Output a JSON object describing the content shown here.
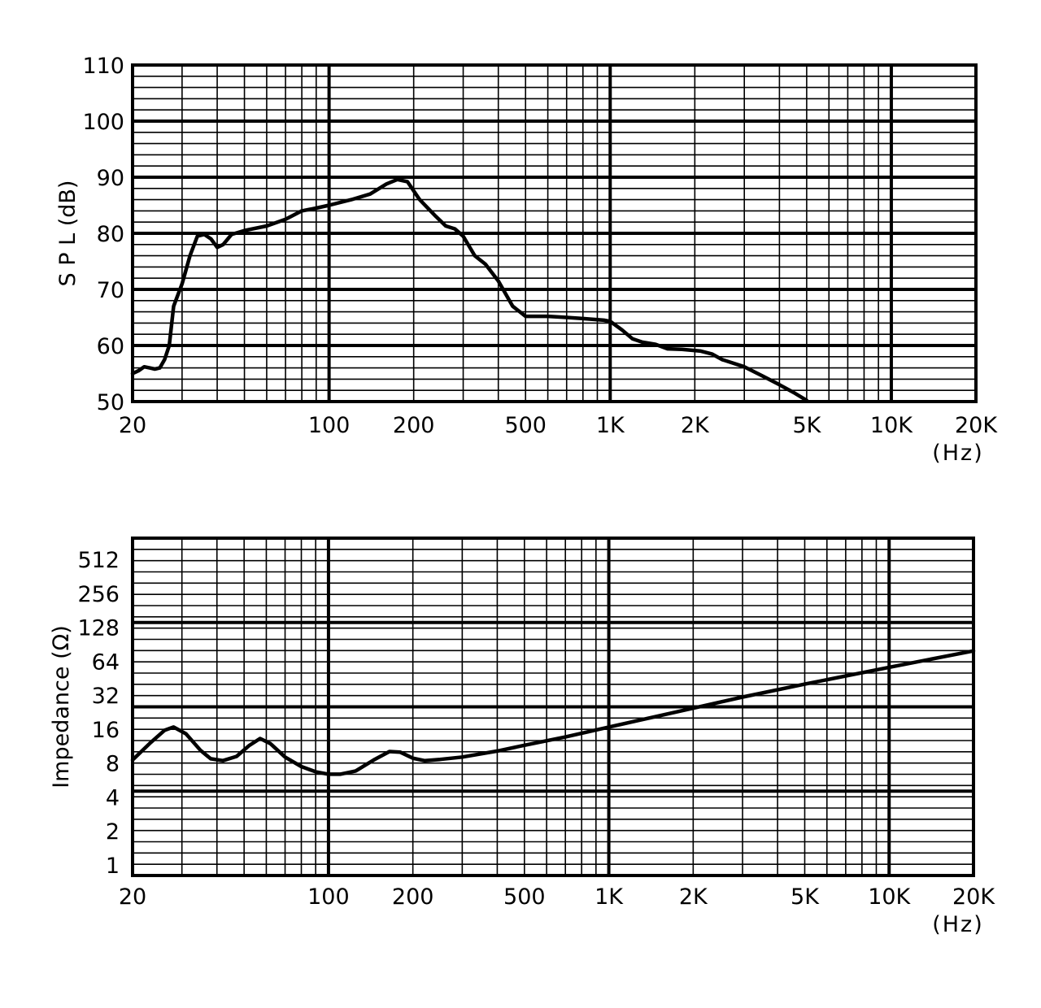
{
  "chart_data": [
    {
      "type": "line",
      "ylabel": "S P L  (dB)",
      "xlabel": "",
      "x_unit": "(Hz)",
      "xscale": "log",
      "xlim": [
        20,
        20000
      ],
      "ylim": [
        50,
        110
      ],
      "grid": true,
      "x_tick_labels": [
        "20",
        "100",
        "200",
        "500",
        "1K",
        "2K",
        "5K",
        "10K",
        "20K"
      ],
      "x_tick_values": [
        20,
        100,
        200,
        500,
        1000,
        2000,
        5000,
        10000,
        20000
      ],
      "y_tick_labels": [
        "110",
        "100",
        "90",
        "80",
        "70",
        "60",
        "50"
      ],
      "y_tick_values": [
        110,
        100,
        90,
        80,
        70,
        60,
        50
      ],
      "series": [
        {
          "color": "#000000",
          "points": [
            [
              20,
              55
            ],
            [
              21,
              55.5
            ],
            [
              22,
              56.2
            ],
            [
              23,
              56
            ],
            [
              24,
              55.8
            ],
            [
              25,
              56
            ],
            [
              26,
              57.5
            ],
            [
              27,
              60
            ],
            [
              28,
              67
            ],
            [
              30,
              71
            ],
            [
              32,
              76
            ],
            [
              34,
              79.5
            ],
            [
              36,
              79.8
            ],
            [
              38,
              79
            ],
            [
              40,
              77.5
            ],
            [
              42,
              78
            ],
            [
              45,
              79.8
            ],
            [
              50,
              80.5
            ],
            [
              60,
              81.3
            ],
            [
              70,
              82.5
            ],
            [
              80,
              84
            ],
            [
              90,
              84.5
            ],
            [
              100,
              85
            ],
            [
              120,
              86
            ],
            [
              140,
              87
            ],
            [
              160,
              88.8
            ],
            [
              175,
              89.6
            ],
            [
              190,
              89.2
            ],
            [
              210,
              86
            ],
            [
              240,
              83
            ],
            [
              260,
              81.3
            ],
            [
              280,
              80.8
            ],
            [
              300,
              79.5
            ],
            [
              330,
              76
            ],
            [
              360,
              74.5
            ],
            [
              400,
              71.5
            ],
            [
              450,
              67
            ],
            [
              500,
              65.2
            ],
            [
              600,
              65.2
            ],
            [
              700,
              65
            ],
            [
              800,
              64.8
            ],
            [
              950,
              64.5
            ],
            [
              1000,
              64.3
            ],
            [
              1100,
              62.8
            ],
            [
              1200,
              61.2
            ],
            [
              1300,
              60.6
            ],
            [
              1450,
              60.2
            ],
            [
              1600,
              59.4
            ],
            [
              1800,
              59.3
            ],
            [
              2100,
              59
            ],
            [
              2300,
              58.5
            ],
            [
              2500,
              57.5
            ],
            [
              3000,
              56.2
            ],
            [
              3500,
              54.5
            ],
            [
              4000,
              53
            ],
            [
              4500,
              51.6
            ],
            [
              5000,
              50.2
            ]
          ]
        }
      ]
    },
    {
      "type": "line",
      "ylabel": "Impedance (Ω)",
      "xlabel": "",
      "x_unit": "(Hz)",
      "xscale": "log",
      "yscale": "log2",
      "xlim": [
        20,
        20000
      ],
      "ylim": [
        0.7,
        800
      ],
      "grid": true,
      "x_tick_labels": [
        "20",
        "100",
        "200",
        "500",
        "1K",
        "2K",
        "5K",
        "10K",
        "20K"
      ],
      "x_tick_values": [
        20,
        100,
        200,
        500,
        1000,
        2000,
        5000,
        10000,
        20000
      ],
      "y_tick_labels": [
        "512",
        "256",
        "128",
        "64",
        "32",
        "16",
        "8",
        "4",
        "2",
        "1"
      ],
      "y_tick_values": [
        512,
        256,
        128,
        64,
        32,
        16,
        8,
        4,
        2,
        1
      ],
      "series": [
        {
          "color": "#000000",
          "points": [
            [
              20,
              7.8
            ],
            [
              23,
              11
            ],
            [
              26,
              14.5
            ],
            [
              28,
              15.5
            ],
            [
              31,
              13.5
            ],
            [
              35,
              9.5
            ],
            [
              38,
              8
            ],
            [
              42,
              7.7
            ],
            [
              47,
              8.4
            ],
            [
              52,
              10.5
            ],
            [
              57,
              12.2
            ],
            [
              62,
              11
            ],
            [
              70,
              8.3
            ],
            [
              80,
              6.8
            ],
            [
              90,
              6.1
            ],
            [
              100,
              5.8
            ],
            [
              110,
              5.8
            ],
            [
              125,
              6.2
            ],
            [
              145,
              7.8
            ],
            [
              165,
              9.3
            ],
            [
              180,
              9.2
            ],
            [
              200,
              8.1
            ],
            [
              220,
              7.7
            ],
            [
              250,
              7.9
            ],
            [
              300,
              8.3
            ],
            [
              400,
              9.4
            ],
            [
              500,
              10.6
            ],
            [
              700,
              12.6
            ],
            [
              1000,
              15.5
            ],
            [
              2000,
              23
            ],
            [
              3000,
              29
            ],
            [
              5000,
              38
            ],
            [
              10000,
              54
            ],
            [
              20000,
              76
            ]
          ]
        }
      ]
    }
  ]
}
